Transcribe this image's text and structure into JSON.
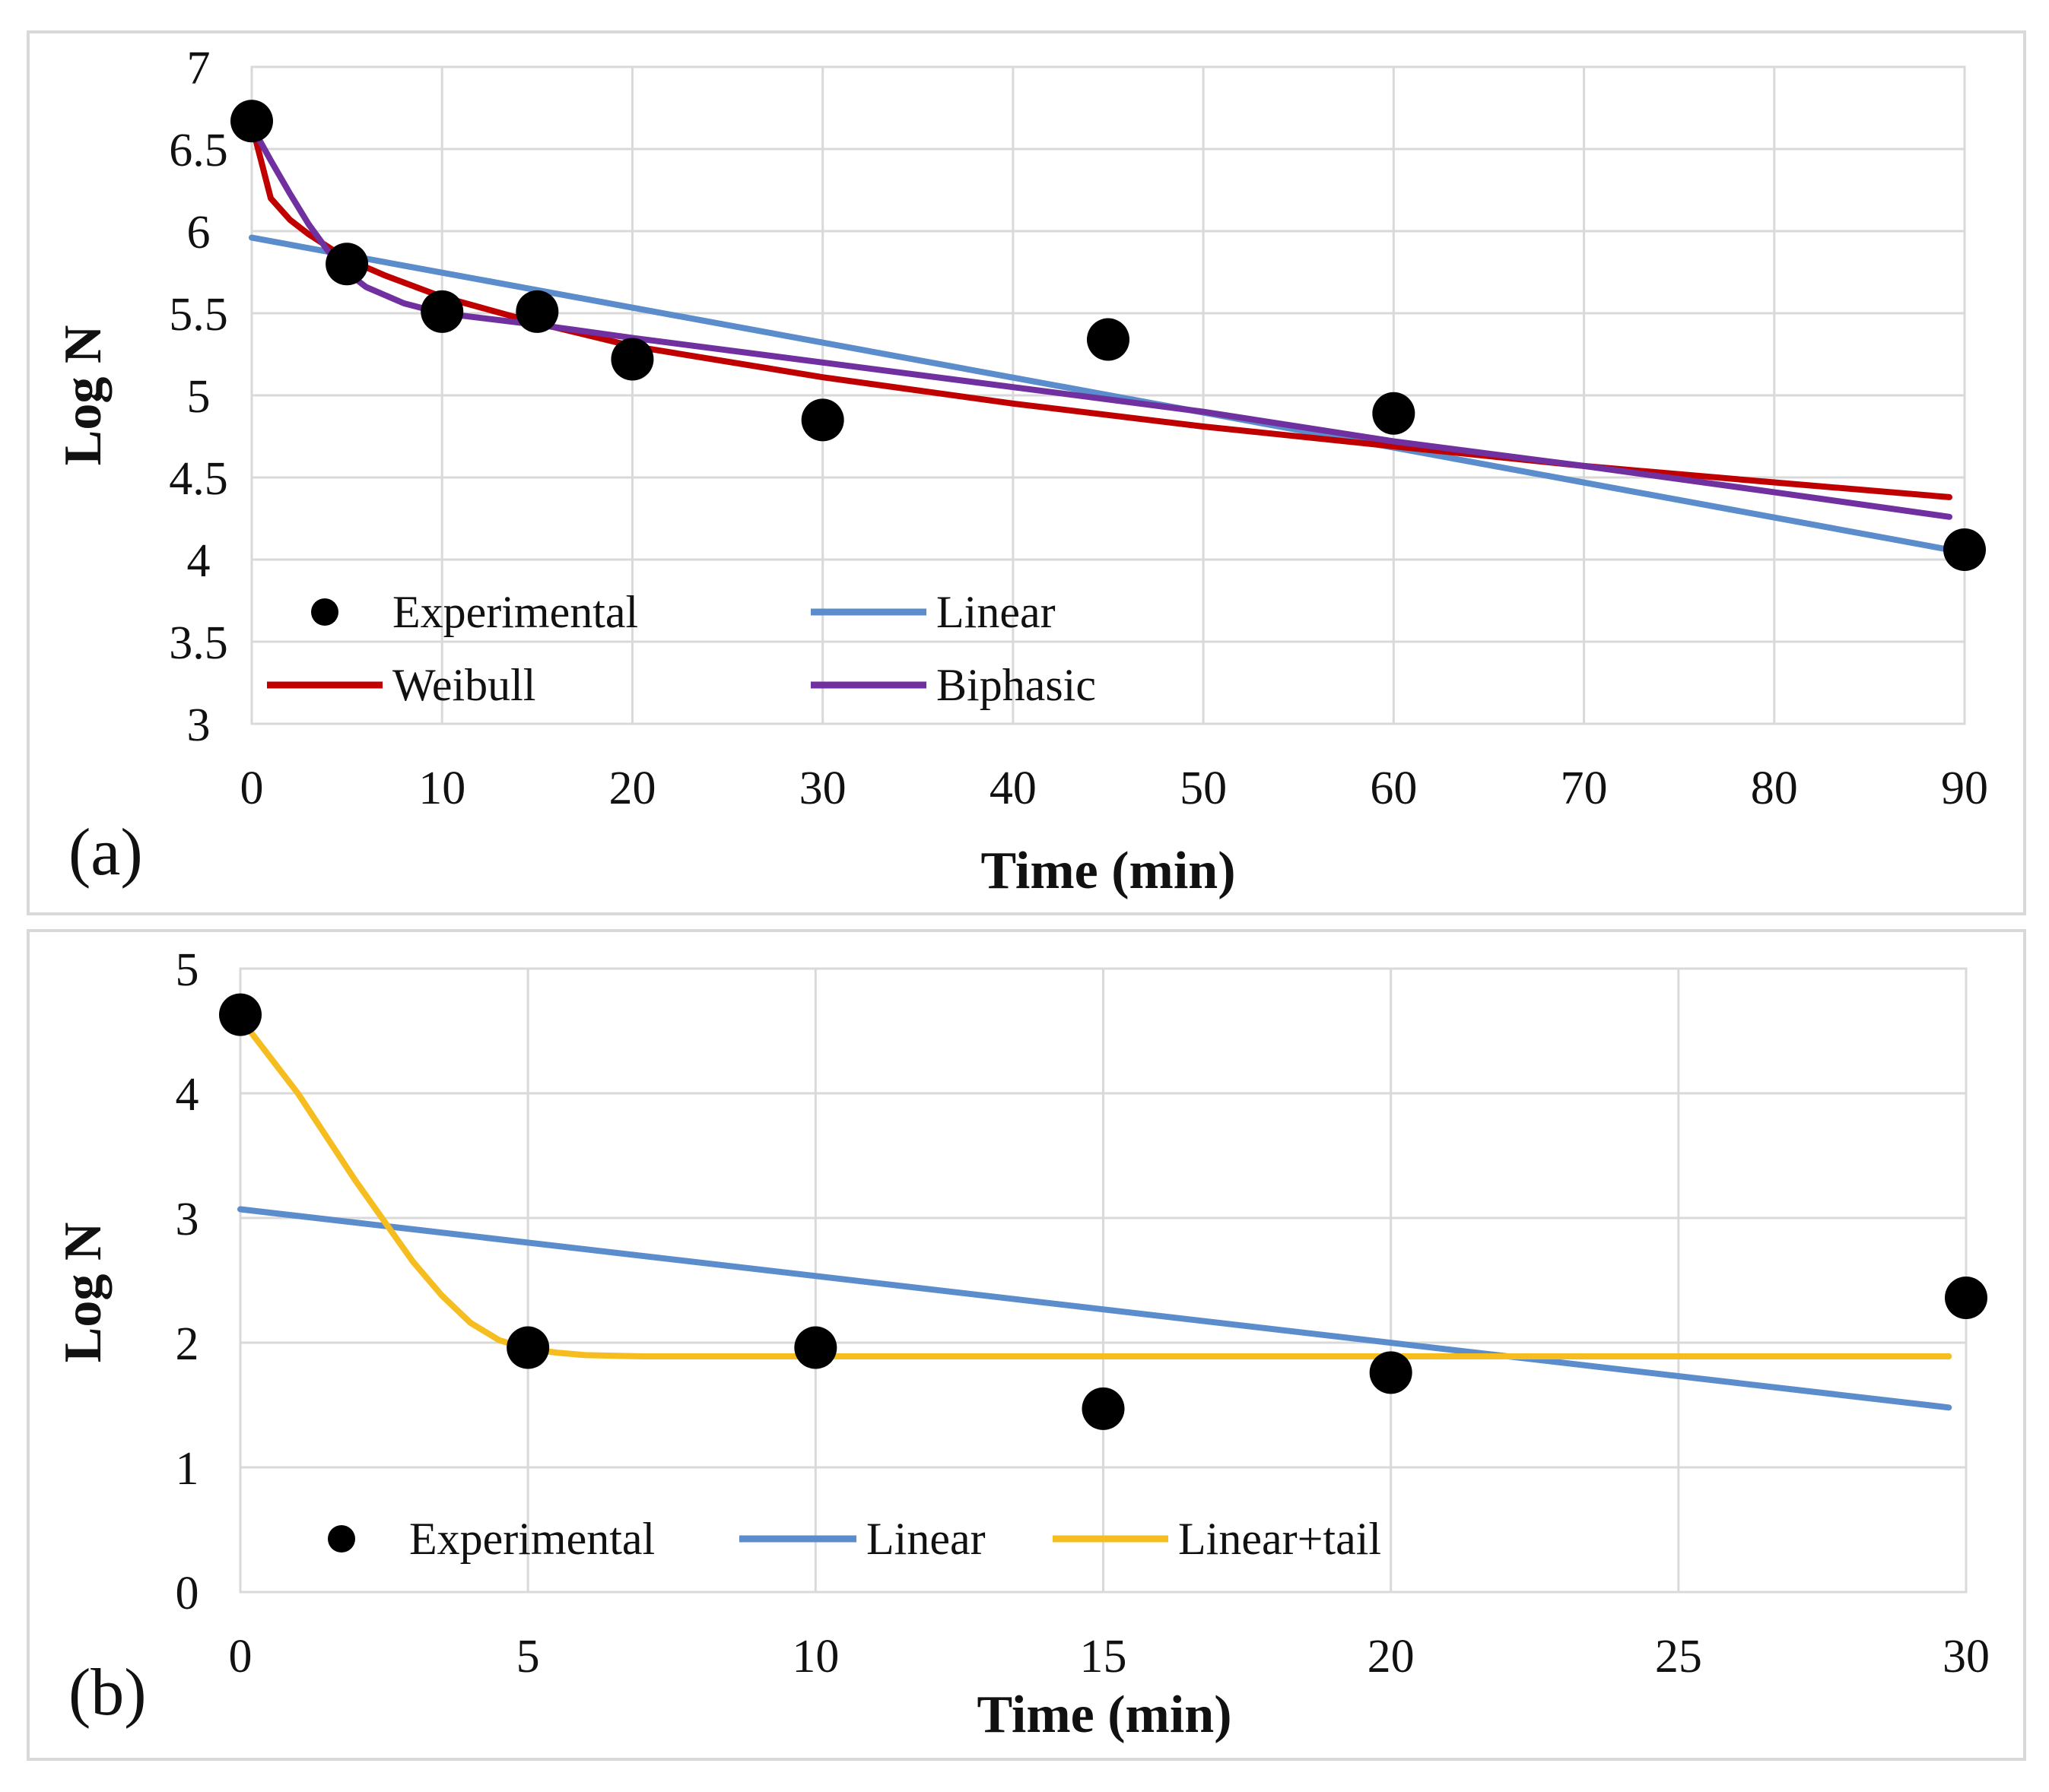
{
  "colors": {
    "experimental": "#000000",
    "linear": "#5b8ccb",
    "weibull": "#c00000",
    "biphasic": "#7030a0",
    "linear_tail": "#f5bd1f",
    "grid": "#d9d9d9",
    "frame": "#d9d9d9"
  },
  "chart_data": [
    {
      "type": "line",
      "panel_label": "(a)",
      "xlabel": "Time (min)",
      "ylabel": "Log N",
      "xlim": [
        0,
        90
      ],
      "ylim": [
        3,
        7
      ],
      "xticks": [
        0,
        10,
        20,
        30,
        40,
        50,
        60,
        70,
        80,
        90
      ],
      "yticks": [
        3,
        3.5,
        4,
        4.5,
        5,
        5.5,
        6,
        6.5,
        7
      ],
      "x_tick_labels": [
        "0",
        "10",
        "20",
        "30",
        "40",
        "50",
        "60",
        "70",
        "80",
        "90"
      ],
      "y_tick_labels": [
        "3",
        "3.5",
        "4",
        "4.5",
        "5",
        "5.5",
        "6",
        "6.5",
        "7"
      ],
      "grid": true,
      "legend_position": "bottom-left",
      "legend": [
        {
          "label": "Experimental",
          "kind": "marker",
          "color_key": "experimental"
        },
        {
          "label": "Linear",
          "kind": "line",
          "color_key": "linear"
        },
        {
          "label": "Weibull",
          "kind": "line",
          "color_key": "weibull"
        },
        {
          "label": "Biphasic",
          "kind": "line",
          "color_key": "biphasic"
        }
      ],
      "scatter": {
        "name": "Experimental",
        "x": [
          0,
          5,
          10,
          15,
          20,
          30,
          45,
          60,
          90
        ],
        "y": [
          6.67,
          5.8,
          5.51,
          5.51,
          5.22,
          4.85,
          5.34,
          4.89,
          4.06
        ]
      },
      "series": [
        {
          "name": "Linear",
          "color_key": "linear",
          "x": [
            0,
            89.2
          ],
          "y": [
            5.96,
            4.06
          ]
        },
        {
          "name": "Weibull",
          "color_key": "weibull",
          "x": [
            0,
            1,
            2,
            3,
            5,
            7,
            10,
            15,
            20,
            30,
            40,
            50,
            60,
            70,
            80,
            89.2
          ],
          "y": [
            6.65,
            6.2,
            6.07,
            5.98,
            5.83,
            5.73,
            5.6,
            5.44,
            5.3,
            5.11,
            4.95,
            4.81,
            4.69,
            4.57,
            4.47,
            4.38
          ]
        },
        {
          "name": "Biphasic",
          "color_key": "biphasic",
          "x": [
            0,
            1,
            2,
            3,
            4,
            5,
            6,
            8,
            10,
            15,
            20,
            30,
            40,
            50,
            60,
            70,
            80,
            89.2
          ],
          "y": [
            6.64,
            6.43,
            6.23,
            6.04,
            5.88,
            5.75,
            5.66,
            5.56,
            5.5,
            5.43,
            5.35,
            5.2,
            5.05,
            4.9,
            4.72,
            4.57,
            4.41,
            4.26
          ]
        }
      ]
    },
    {
      "type": "line",
      "panel_label": "(b)",
      "xlabel": "Time (min)",
      "ylabel": "Log N",
      "xlim": [
        0,
        30
      ],
      "ylim": [
        0,
        5
      ],
      "xticks": [
        0,
        5,
        10,
        15,
        20,
        25,
        30
      ],
      "yticks": [
        0,
        1,
        2,
        3,
        4,
        5
      ],
      "x_tick_labels": [
        "0",
        "5",
        "10",
        "15",
        "20",
        "25",
        "30"
      ],
      "y_tick_labels": [
        "0",
        "1",
        "2",
        "3",
        "4",
        "5"
      ],
      "grid": true,
      "legend_position": "bottom-left",
      "legend": [
        {
          "label": "Experimental",
          "kind": "marker",
          "color_key": "experimental"
        },
        {
          "label": "Linear",
          "kind": "line",
          "color_key": "linear"
        },
        {
          "label": "Linear+tail",
          "kind": "line",
          "color_key": "linear_tail"
        }
      ],
      "scatter": {
        "name": "Experimental",
        "x": [
          0,
          5,
          10,
          15,
          20,
          30
        ],
        "y": [
          4.63,
          1.96,
          1.96,
          1.47,
          1.76,
          2.36
        ]
      },
      "series": [
        {
          "name": "Linear",
          "color_key": "linear",
          "x": [
            0,
            29.7
          ],
          "y": [
            3.07,
            1.48
          ]
        },
        {
          "name": "Linear+tail",
          "color_key": "linear_tail",
          "x": [
            0,
            1,
            2,
            3,
            3.5,
            4,
            4.5,
            5,
            5.5,
            6,
            7,
            8,
            10,
            15,
            20,
            25,
            29.7
          ],
          "y": [
            4.6,
            4.0,
            3.3,
            2.65,
            2.38,
            2.16,
            2.02,
            1.95,
            1.92,
            1.9,
            1.89,
            1.89,
            1.89,
            1.89,
            1.89,
            1.89,
            1.89
          ]
        }
      ]
    }
  ]
}
